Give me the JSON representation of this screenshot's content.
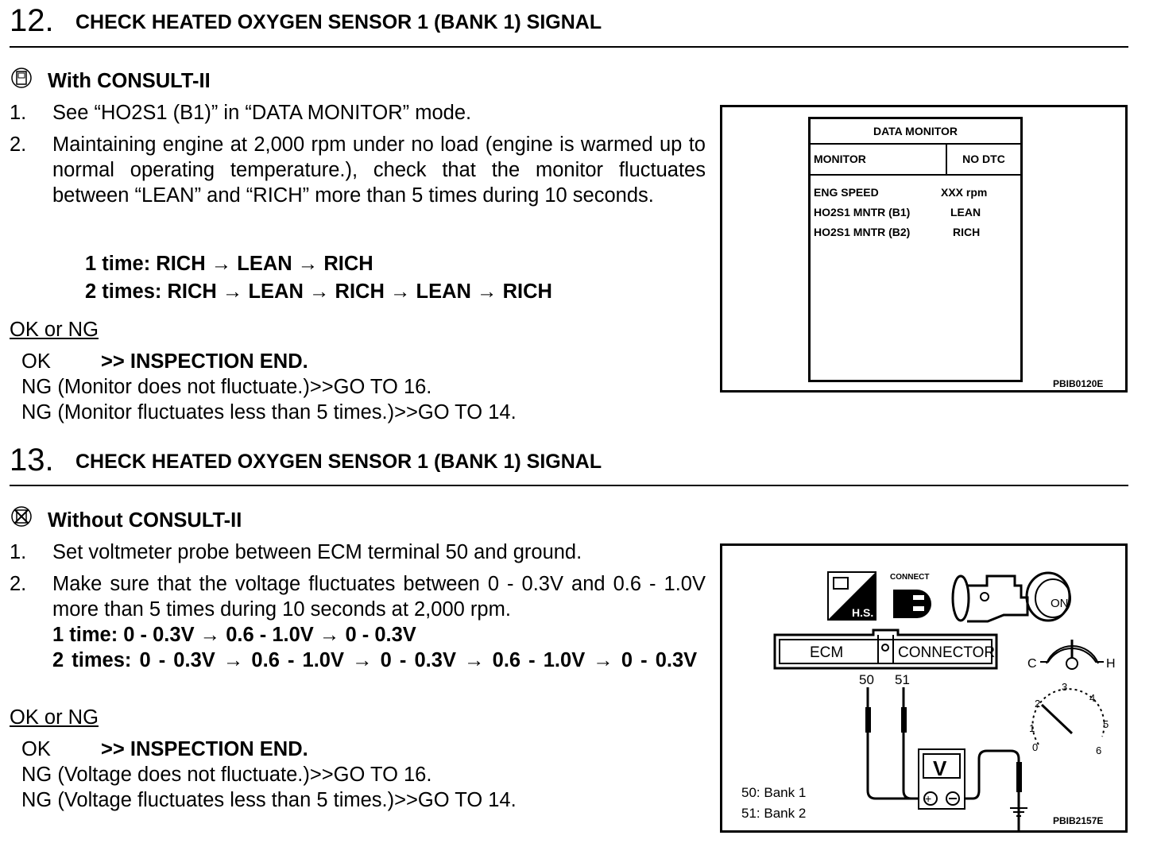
{
  "step12": {
    "number": "12.",
    "title": "CHECK HEATED OXYGEN SENSOR 1 (BANK 1) SIGNAL",
    "mode_icon": "consult-icon",
    "mode_label": "With CONSULT-II",
    "items": [
      {
        "num": "1.",
        "text": "See “HO2S1 (B1)” in “DATA MONITOR” mode."
      },
      {
        "num": "2.",
        "text": "Maintaining engine at 2,000 rpm under no load (engine is warmed up to normal operating temperature.), check that the monitor fluctuates between “LEAN” and “RICH” more than 5 times during 10 seconds."
      }
    ],
    "examples": [
      "1 time: RICH → LEAN → RICH",
      "2 times: RICH → LEAN → RICH → LEAN → RICH"
    ],
    "ok_ng": "OK or NG",
    "results": [
      {
        "label": "OK",
        "action": ">> INSPECTION END."
      },
      {
        "label": "NG (Monitor does not fluctuate.)",
        "action": ">>GO TO 16."
      },
      {
        "label": "NG (Monitor fluctuates less than 5 times.)",
        "action": ">>GO TO 14."
      }
    ],
    "figure": {
      "header": "DATA MONITOR",
      "col1": "MONITOR",
      "col2": "NO DTC",
      "rows": [
        {
          "name": "ENG SPEED",
          "value": "XXX rpm"
        },
        {
          "name": "HO2S1 MNTR (B1)",
          "value": "LEAN"
        },
        {
          "name": "HO2S1 MNTR (B2)",
          "value": "RICH"
        }
      ],
      "code": "PBIB0120E"
    }
  },
  "step13": {
    "number": "13.",
    "title": "CHECK HEATED OXYGEN SENSOR 1 (BANK 1) SIGNAL",
    "mode_icon": "no-consult-icon",
    "mode_label": "Without CONSULT-II",
    "items": [
      {
        "num": "1.",
        "text": "Set voltmeter probe between ECM terminal 50 and ground."
      },
      {
        "num": "2.",
        "text": "Make sure that the voltage fluctuates between 0 - 0.3V and 0.6 - 1.0V more than 5 times during 10 seconds at 2,000 rpm."
      }
    ],
    "examples": [
      "1 time: 0 - 0.3V → 0.6 - 1.0V → 0 - 0.3V",
      "2 times: 0 - 0.3V → 0.6 - 1.0V → 0 - 0.3V → 0.6 - 1.0V → 0 - 0.3V"
    ],
    "ok_ng": "OK or NG",
    "results": [
      {
        "label": "OK",
        "action": ">> INSPECTION END."
      },
      {
        "label": "NG (Voltage does not fluctuate.)",
        "action": ">>GO TO 16."
      },
      {
        "label": "NG (Voltage fluctuates less than 5 times.)",
        "action": ">>GO TO 14."
      }
    ],
    "figure": {
      "icons": [
        "hood-switch-icon",
        "connect-icon",
        "engine-icon",
        "ignition-on-icon"
      ],
      "icon_texts": [
        "H.S.",
        "CONNECT",
        "ON"
      ],
      "ecm": "ECM",
      "connector": "CONNECTOR",
      "terminals": [
        "50",
        "51"
      ],
      "meter": "V",
      "temp_c": "C",
      "temp_h": "H",
      "tach_ticks": [
        "0",
        "1",
        "2",
        "3",
        "4",
        "5",
        "6"
      ],
      "legend": [
        "50: Bank 1",
        "51: Bank 2"
      ],
      "code": "PBIB2157E"
    }
  }
}
